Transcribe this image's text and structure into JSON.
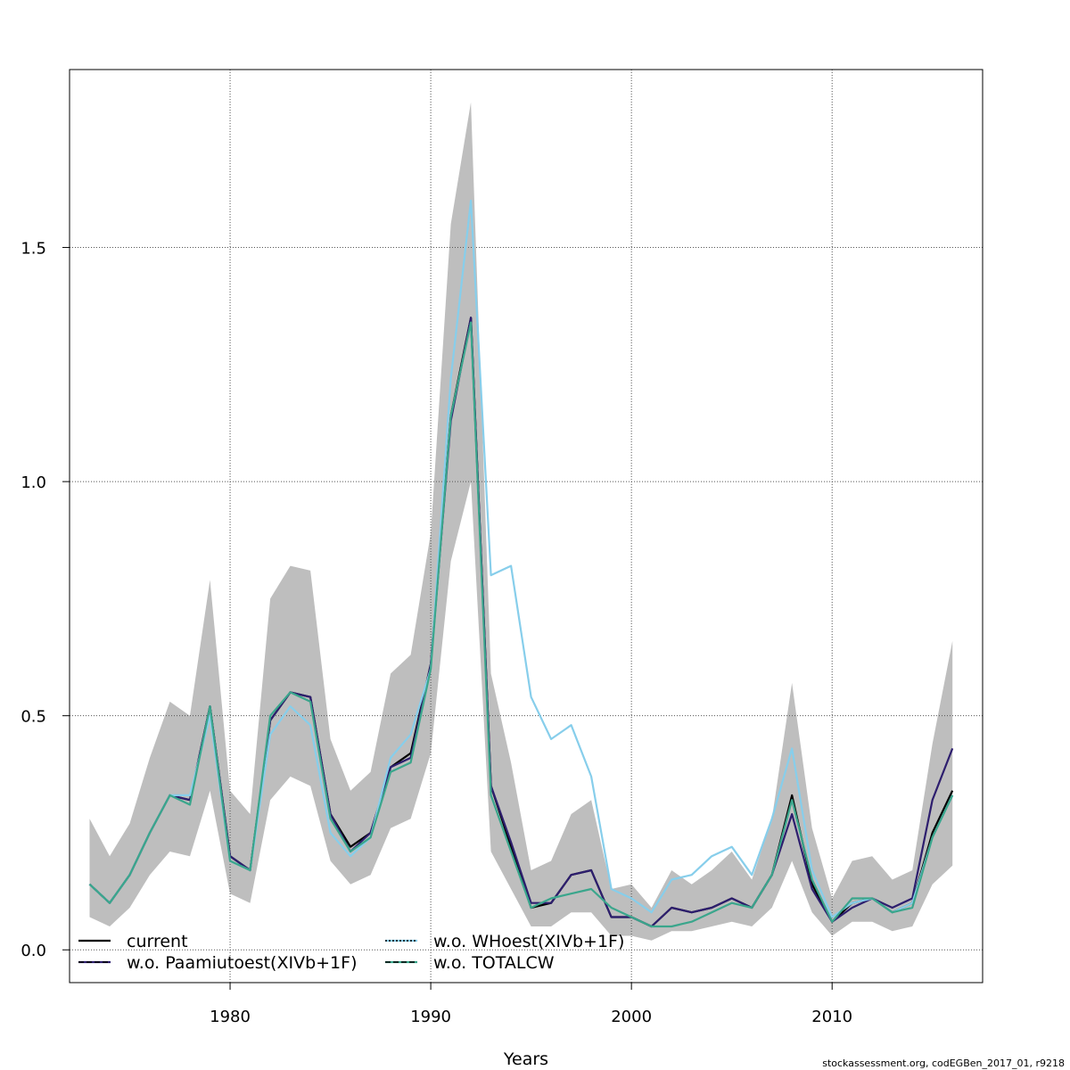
{
  "chart_data": {
    "type": "line",
    "xlabel": "Years",
    "ylabel": "",
    "xlim": [
      1972,
      2017.5
    ],
    "ylim": [
      -0.07,
      1.88
    ],
    "x_ticks": [
      1980,
      1990,
      2000,
      2010
    ],
    "y_ticks": [
      0.0,
      0.5,
      1.0,
      1.5
    ],
    "x_tick_labels": [
      "1980",
      "1990",
      "2000",
      "2010"
    ],
    "y_tick_labels": [
      "0.0",
      "0.5",
      "1.0",
      "1.5"
    ],
    "grid": true,
    "legend_position": "bottom-left",
    "x": [
      1973,
      1974,
      1975,
      1976,
      1977,
      1978,
      1979,
      1980,
      1981,
      1982,
      1983,
      1984,
      1985,
      1986,
      1987,
      1988,
      1989,
      1990,
      1991,
      1992,
      1993,
      1994,
      1995,
      1996,
      1997,
      1998,
      1999,
      2000,
      2001,
      2002,
      2003,
      2004,
      2005,
      2006,
      2007,
      2008,
      2009,
      2010,
      2011,
      2012,
      2013,
      2014,
      2015,
      2016
    ],
    "band": {
      "color": "#bebebe",
      "upper": [
        0.28,
        0.2,
        0.27,
        0.41,
        0.53,
        0.5,
        0.79,
        0.34,
        0.29,
        0.75,
        0.82,
        0.81,
        0.45,
        0.34,
        0.38,
        0.59,
        0.63,
        0.89,
        1.55,
        1.81,
        0.59,
        0.4,
        0.17,
        0.19,
        0.29,
        0.32,
        0.13,
        0.14,
        0.09,
        0.17,
        0.14,
        0.17,
        0.21,
        0.15,
        0.28,
        0.57,
        0.26,
        0.11,
        0.19,
        0.2,
        0.15,
        0.17,
        0.44,
        0.66
      ],
      "lower": [
        0.07,
        0.05,
        0.09,
        0.16,
        0.21,
        0.2,
        0.34,
        0.12,
        0.1,
        0.32,
        0.37,
        0.35,
        0.19,
        0.14,
        0.16,
        0.26,
        0.28,
        0.42,
        0.83,
        1.0,
        0.21,
        0.13,
        0.05,
        0.05,
        0.08,
        0.08,
        0.03,
        0.03,
        0.02,
        0.04,
        0.04,
        0.05,
        0.06,
        0.05,
        0.09,
        0.19,
        0.08,
        0.03,
        0.06,
        0.06,
        0.04,
        0.05,
        0.14,
        0.18
      ]
    },
    "series": [
      {
        "name": "current",
        "color": "#000000",
        "dash": "solid",
        "values": [
          0.14,
          0.1,
          0.16,
          0.25,
          0.33,
          0.32,
          0.52,
          0.2,
          0.17,
          0.49,
          0.55,
          0.54,
          0.29,
          0.22,
          0.25,
          0.39,
          0.42,
          0.61,
          1.14,
          1.35,
          0.35,
          0.22,
          0.09,
          0.1,
          0.16,
          0.17,
          0.07,
          0.07,
          0.05,
          0.09,
          0.08,
          0.09,
          0.11,
          0.09,
          0.16,
          0.33,
          0.14,
          0.06,
          0.1,
          0.11,
          0.08,
          0.1,
          0.25,
          0.34
        ]
      },
      {
        "name": "w.o. Paamiutoest(XIVb+1F)",
        "color": "#2d1e6e",
        "dash": "dashed",
        "values": [
          0.14,
          0.1,
          0.16,
          0.25,
          0.33,
          0.32,
          0.52,
          0.2,
          0.17,
          0.49,
          0.55,
          0.54,
          0.29,
          0.21,
          0.25,
          0.39,
          0.41,
          0.61,
          1.13,
          1.35,
          0.35,
          0.23,
          0.1,
          0.1,
          0.16,
          0.17,
          0.07,
          0.07,
          0.05,
          0.09,
          0.08,
          0.09,
          0.11,
          0.09,
          0.16,
          0.29,
          0.13,
          0.06,
          0.09,
          0.11,
          0.09,
          0.11,
          0.32,
          0.43
        ]
      },
      {
        "name": "w.o. WHoest(XIVb+1F)",
        "color": "#87ceeb",
        "dash": "dotted",
        "values": [
          0.14,
          0.1,
          0.16,
          0.25,
          0.33,
          0.33,
          0.5,
          0.19,
          0.17,
          0.46,
          0.52,
          0.48,
          0.25,
          0.2,
          0.24,
          0.41,
          0.46,
          0.6,
          1.22,
          1.6,
          0.8,
          0.82,
          0.54,
          0.45,
          0.48,
          0.37,
          0.13,
          0.11,
          0.08,
          0.15,
          0.16,
          0.2,
          0.22,
          0.16,
          0.28,
          0.43,
          0.17,
          0.07,
          0.1,
          0.11,
          0.08,
          0.1,
          0.24,
          0.33
        ]
      },
      {
        "name": "w.o. TOTALCW",
        "color": "#3aa68c",
        "dash": "dashed",
        "values": [
          0.14,
          0.1,
          0.16,
          0.25,
          0.33,
          0.31,
          0.52,
          0.19,
          0.17,
          0.5,
          0.55,
          0.53,
          0.28,
          0.21,
          0.24,
          0.38,
          0.4,
          0.6,
          1.14,
          1.34,
          0.33,
          0.21,
          0.09,
          0.11,
          0.12,
          0.13,
          0.09,
          0.07,
          0.05,
          0.05,
          0.06,
          0.08,
          0.1,
          0.09,
          0.16,
          0.32,
          0.15,
          0.06,
          0.11,
          0.11,
          0.08,
          0.09,
          0.24,
          0.33
        ]
      }
    ],
    "footer": "stockassessment.org, codEGBen_2017_01, r9218"
  }
}
